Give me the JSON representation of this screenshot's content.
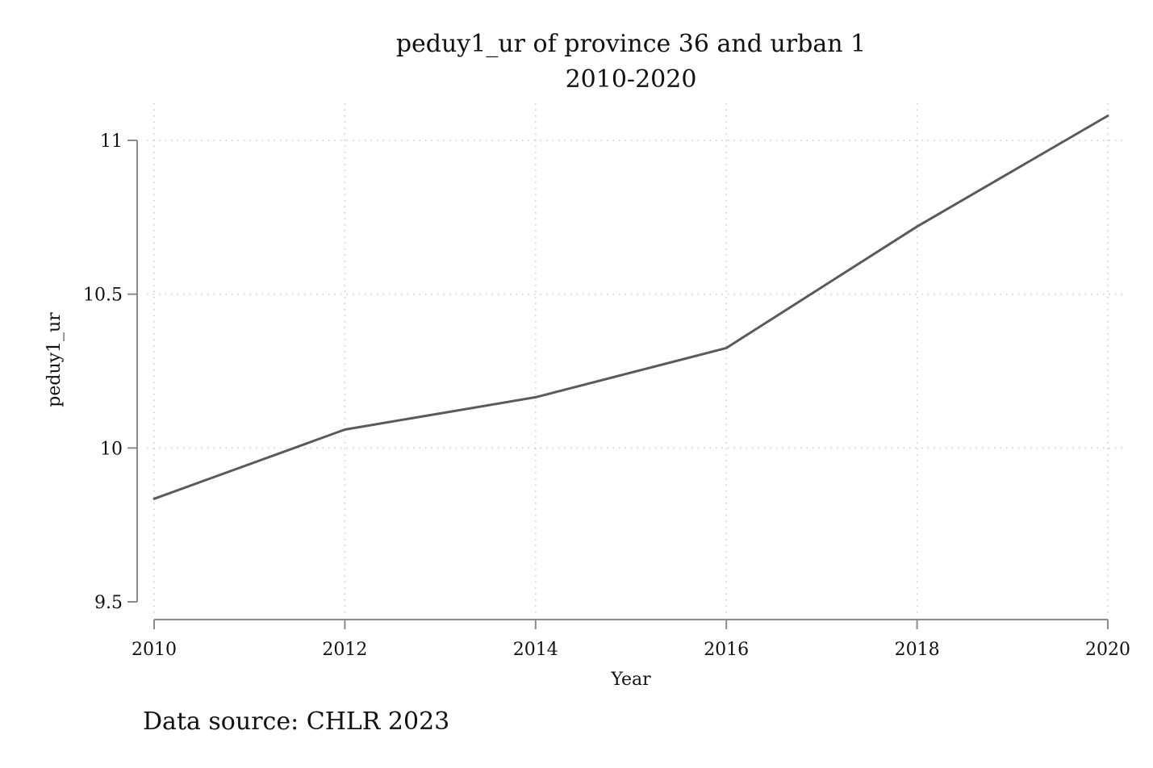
{
  "chart_data": {
    "type": "line",
    "title": "peduy1_ur of province 36 and urban 1",
    "subtitle": "2010-2020",
    "xlabel": "Year",
    "ylabel": "peduy1_ur",
    "x": [
      2010,
      2012,
      2014,
      2016,
      2018,
      2020
    ],
    "series": [
      {
        "values": [
          9.835,
          10.06,
          10.165,
          10.325,
          10.72,
          11.08
        ]
      }
    ],
    "xlim": [
      2010,
      2020
    ],
    "ylim": [
      9.5,
      11.0
    ],
    "xticks": [
      "2010",
      "2012",
      "2014",
      "2016",
      "2018",
      "2020"
    ],
    "yticks": [
      "9.5",
      "10",
      "10.5",
      "11"
    ],
    "grid": true,
    "line_color": "#5a5a5a",
    "grid_color": "#c8c8c8",
    "note": "Data source: CHLR 2023"
  }
}
